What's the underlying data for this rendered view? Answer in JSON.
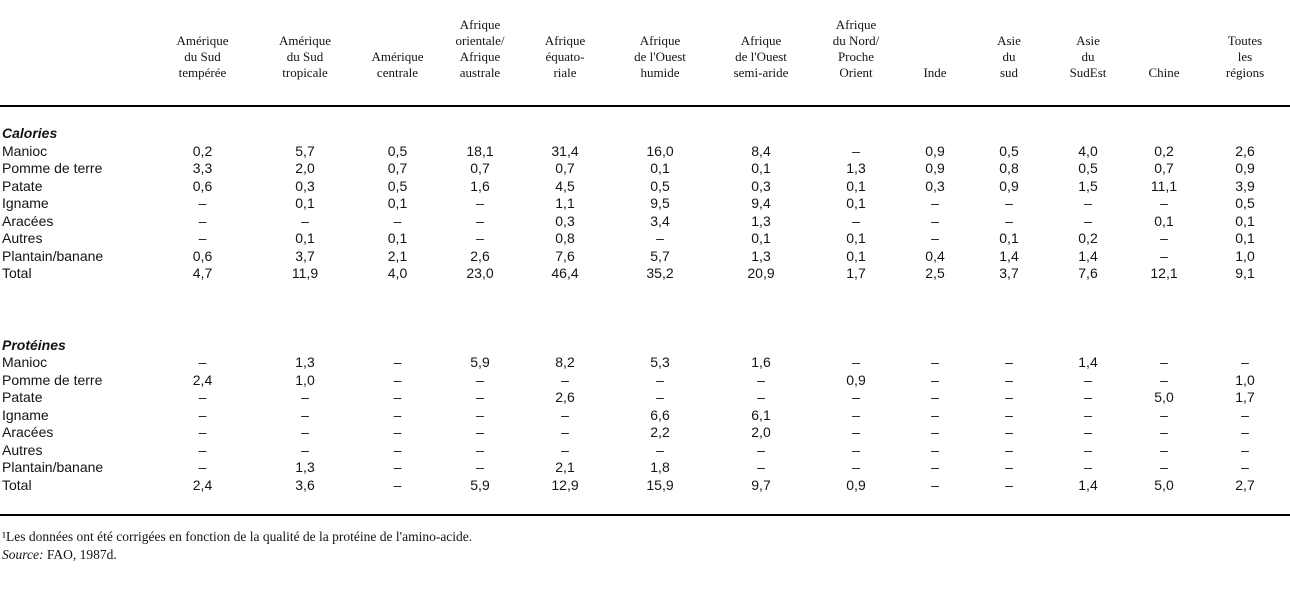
{
  "table": {
    "columns": [
      {
        "label_lines": [
          "Amérique",
          "du Sud",
          "tempérée"
        ]
      },
      {
        "label_lines": [
          "Amérique",
          "du Sud",
          "tropicale"
        ]
      },
      {
        "label_lines": [
          "Amérique",
          "centrale"
        ]
      },
      {
        "label_lines": [
          "Afrique",
          "orientale/",
          "Afrique",
          "australe"
        ]
      },
      {
        "label_lines": [
          "Afrique",
          "équato-",
          "riale"
        ]
      },
      {
        "label_lines": [
          "Afrique",
          "de l'Ouest",
          "humide"
        ]
      },
      {
        "label_lines": [
          "Afrique",
          "de l'Ouest",
          "semi-aride"
        ]
      },
      {
        "label_lines": [
          "Afrique",
          "du Nord/",
          "Proche",
          "Orient"
        ]
      },
      {
        "label_lines": [
          "Inde"
        ]
      },
      {
        "label_lines": [
          "Asie",
          "du",
          "sud"
        ]
      },
      {
        "label_lines": [
          "Asie",
          "du",
          "SudEst"
        ]
      },
      {
        "label_lines": [
          "Chine"
        ]
      },
      {
        "label_lines": [
          "Toutes",
          "les",
          "régions"
        ]
      }
    ],
    "sections": [
      {
        "title": "Calories",
        "rows": [
          {
            "label": "Manioc",
            "values": [
              "0,2",
              "5,7",
              "0,5",
              "18,1",
              "31,4",
              "16,0",
              "8,4",
              "–",
              "0,9",
              "0,5",
              "4,0",
              "0,2",
              "2,6"
            ]
          },
          {
            "label": "Pomme de terre",
            "values": [
              "3,3",
              "2,0",
              "0,7",
              "0,7",
              "0,7",
              "0,1",
              "0,1",
              "1,3",
              "0,9",
              "0,8",
              "0,5",
              "0,7",
              "0,9"
            ]
          },
          {
            "label": "Patate",
            "values": [
              "0,6",
              "0,3",
              "0,5",
              "1,6",
              "4,5",
              "0,5",
              "0,3",
              "0,1",
              "0,3",
              "0,9",
              "1,5",
              "11,1",
              "3,9"
            ]
          },
          {
            "label": "Igname",
            "values": [
              "–",
              "0,1",
              "0,1",
              "–",
              "1,1",
              "9,5",
              "9,4",
              "0,1",
              "–",
              "–",
              "–",
              "–",
              "0,5"
            ]
          },
          {
            "label": "Aracées",
            "values": [
              "–",
              "–",
              "–",
              "–",
              "0,3",
              "3,4",
              "1,3",
              "–",
              "–",
              "–",
              "–",
              "0,1",
              "0,1"
            ]
          },
          {
            "label": "Autres",
            "values": [
              "–",
              "0,1",
              "0,1",
              "–",
              "0,8",
              "–",
              "0,1",
              "0,1",
              "–",
              "0,1",
              "0,2",
              "–",
              "0,1"
            ]
          },
          {
            "label": "Plantain/banane",
            "values": [
              "0,6",
              "3,7",
              "2,1",
              "2,6",
              "7,6",
              "5,7",
              "1,3",
              "0,1",
              "0,4",
              "1,4",
              "1,4",
              "–",
              "1,0"
            ]
          },
          {
            "label": "Total",
            "values": [
              "4,7",
              "11,9",
              "4,0",
              "23,0",
              "46,4",
              "35,2",
              "20,9",
              "1,7",
              "2,5",
              "3,7",
              "7,6",
              "12,1",
              "9,1"
            ]
          }
        ]
      },
      {
        "title": "Protéines",
        "rows": [
          {
            "label": "Manioc",
            "values": [
              "–",
              "1,3",
              "–",
              "5,9",
              "8,2",
              "5,3",
              "1,6",
              "–",
              "–",
              "–",
              "1,4",
              "–",
              "–"
            ]
          },
          {
            "label": "Pomme de terre",
            "values": [
              "2,4",
              "1,0",
              "–",
              "–",
              "–",
              "–",
              "–",
              "0,9",
              "–",
              "–",
              "–",
              "–",
              "1,0"
            ]
          },
          {
            "label": "Patate",
            "values": [
              "–",
              "–",
              "–",
              "–",
              "2,6",
              "–",
              "–",
              "–",
              "–",
              "–",
              "–",
              "5,0",
              "1,7"
            ]
          },
          {
            "label": "Igname",
            "values": [
              "–",
              "–",
              "–",
              "–",
              "–",
              "6,6",
              "6,1",
              "–",
              "–",
              "–",
              "–",
              "–",
              "–"
            ]
          },
          {
            "label": "Aracées",
            "values": [
              "–",
              "–",
              "–",
              "–",
              "–",
              "2,2",
              "2,0",
              "–",
              "–",
              "–",
              "–",
              "–",
              "–"
            ]
          },
          {
            "label": "Autres",
            "values": [
              "–",
              "–",
              "–",
              "–",
              "–",
              "–",
              "–",
              "–",
              "–",
              "–",
              "–",
              "–",
              "–"
            ]
          },
          {
            "label": "Plantain/banane",
            "values": [
              "–",
              "1,3",
              "–",
              "–",
              "2,1",
              "1,8",
              "–",
              "–",
              "–",
              "–",
              "–",
              "–",
              "–"
            ]
          },
          {
            "label": "Total",
            "values": [
              "2,4",
              "3,6",
              "–",
              "5,9",
              "12,9",
              "15,9",
              "9,7",
              "0,9",
              "–",
              "–",
              "1,4",
              "5,0",
              "2,7"
            ]
          }
        ]
      }
    ]
  },
  "footnote": "¹Les données ont été corrigées en fonction de la qualité de la protéine de l'amino-acide.",
  "source": {
    "label": "Source:",
    "value": "FAO, 1987d."
  }
}
